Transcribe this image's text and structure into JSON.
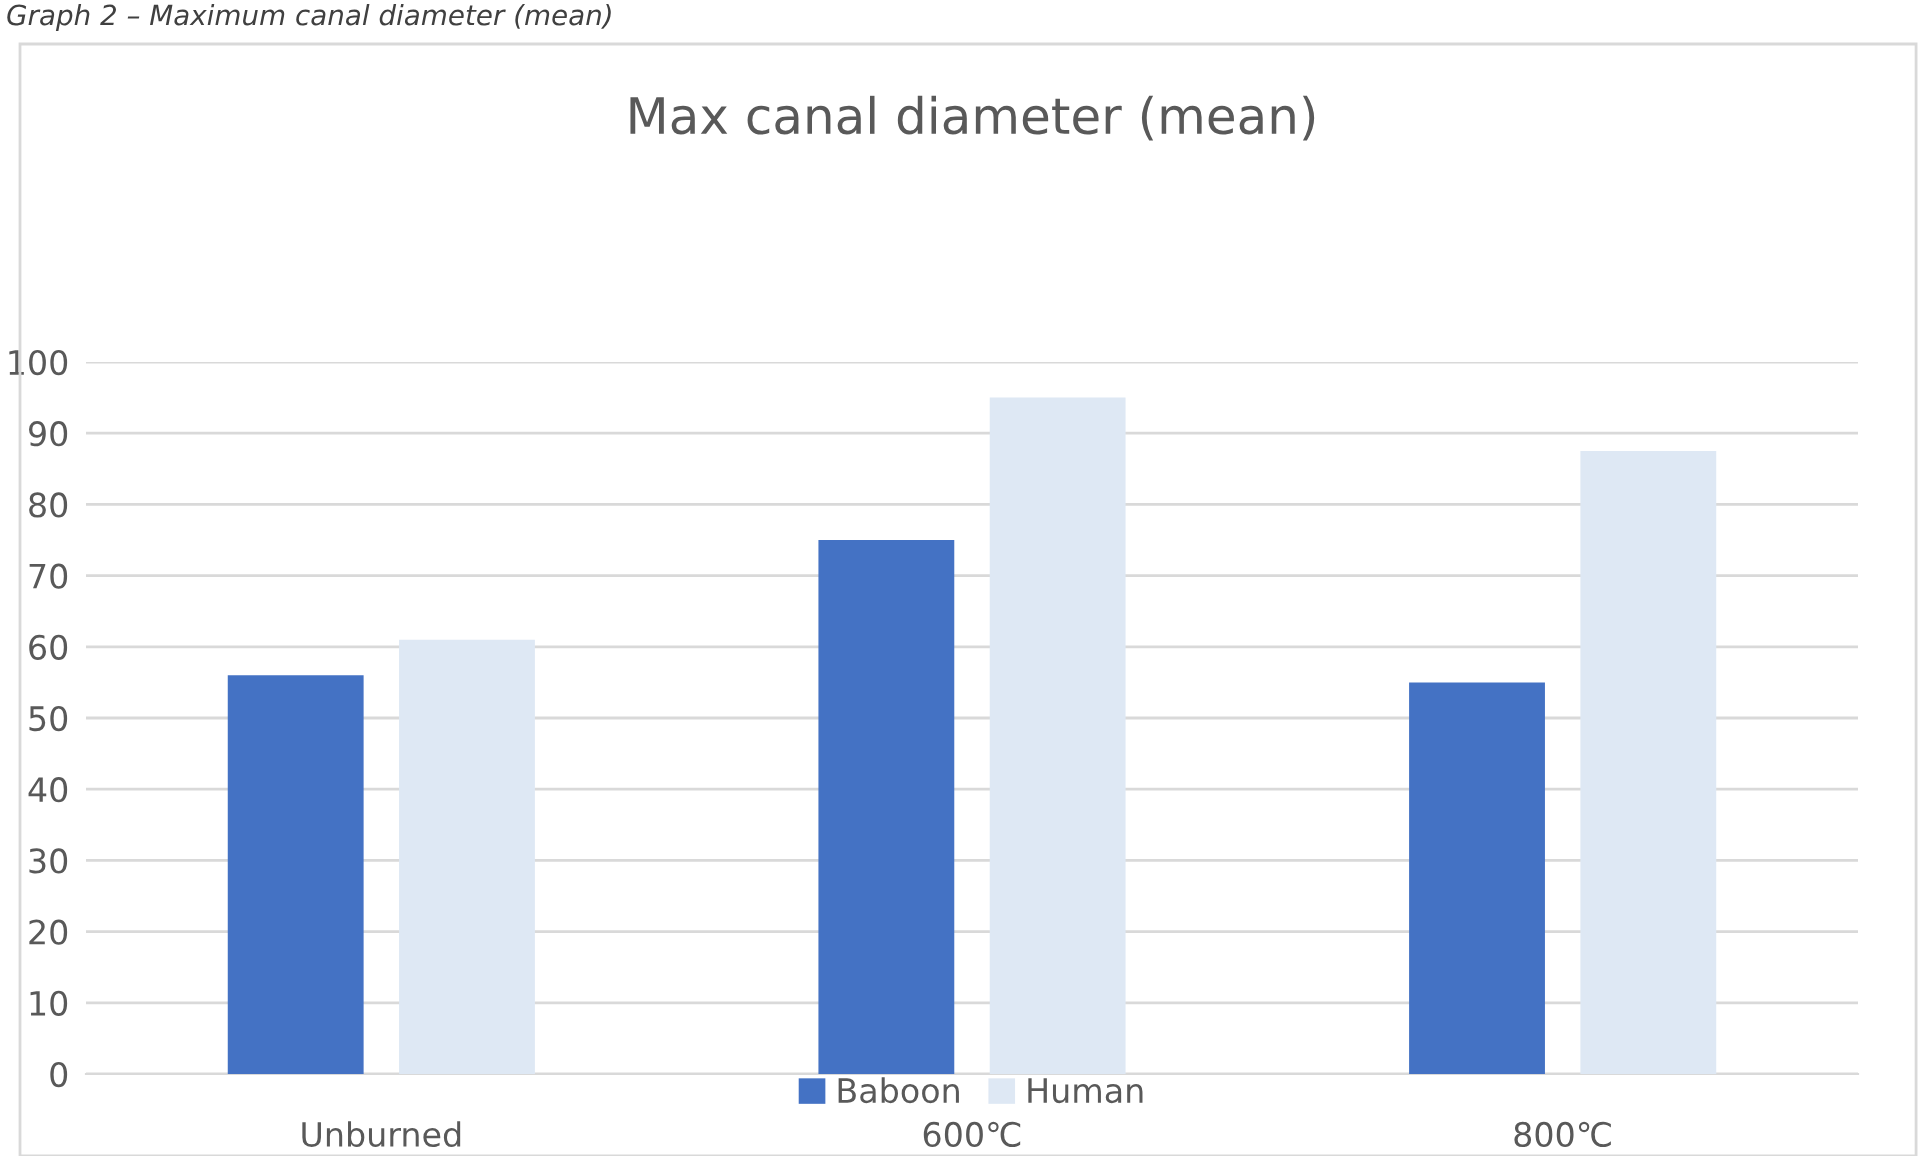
{
  "chart_data": {
    "type": "bar",
    "title": "Max canal diameter (mean)",
    "annotations": [
      "Graph 2 – Maximum canal diameter (mean)"
    ],
    "categories": [
      "Unburned",
      "600℃",
      "800℃"
    ],
    "series": [
      {
        "name": "Baboon",
        "color": "#4472c4",
        "values": [
          56,
          75,
          55
        ]
      },
      {
        "name": "Human",
        "color": "#dee8f4",
        "values": [
          61,
          95,
          87.5
        ]
      }
    ],
    "ylim": [
      0,
      100
    ],
    "yticks": [
      0,
      10,
      20,
      30,
      40,
      50,
      60,
      70,
      80,
      90,
      100
    ],
    "grid": "y",
    "legend": "bottom"
  }
}
